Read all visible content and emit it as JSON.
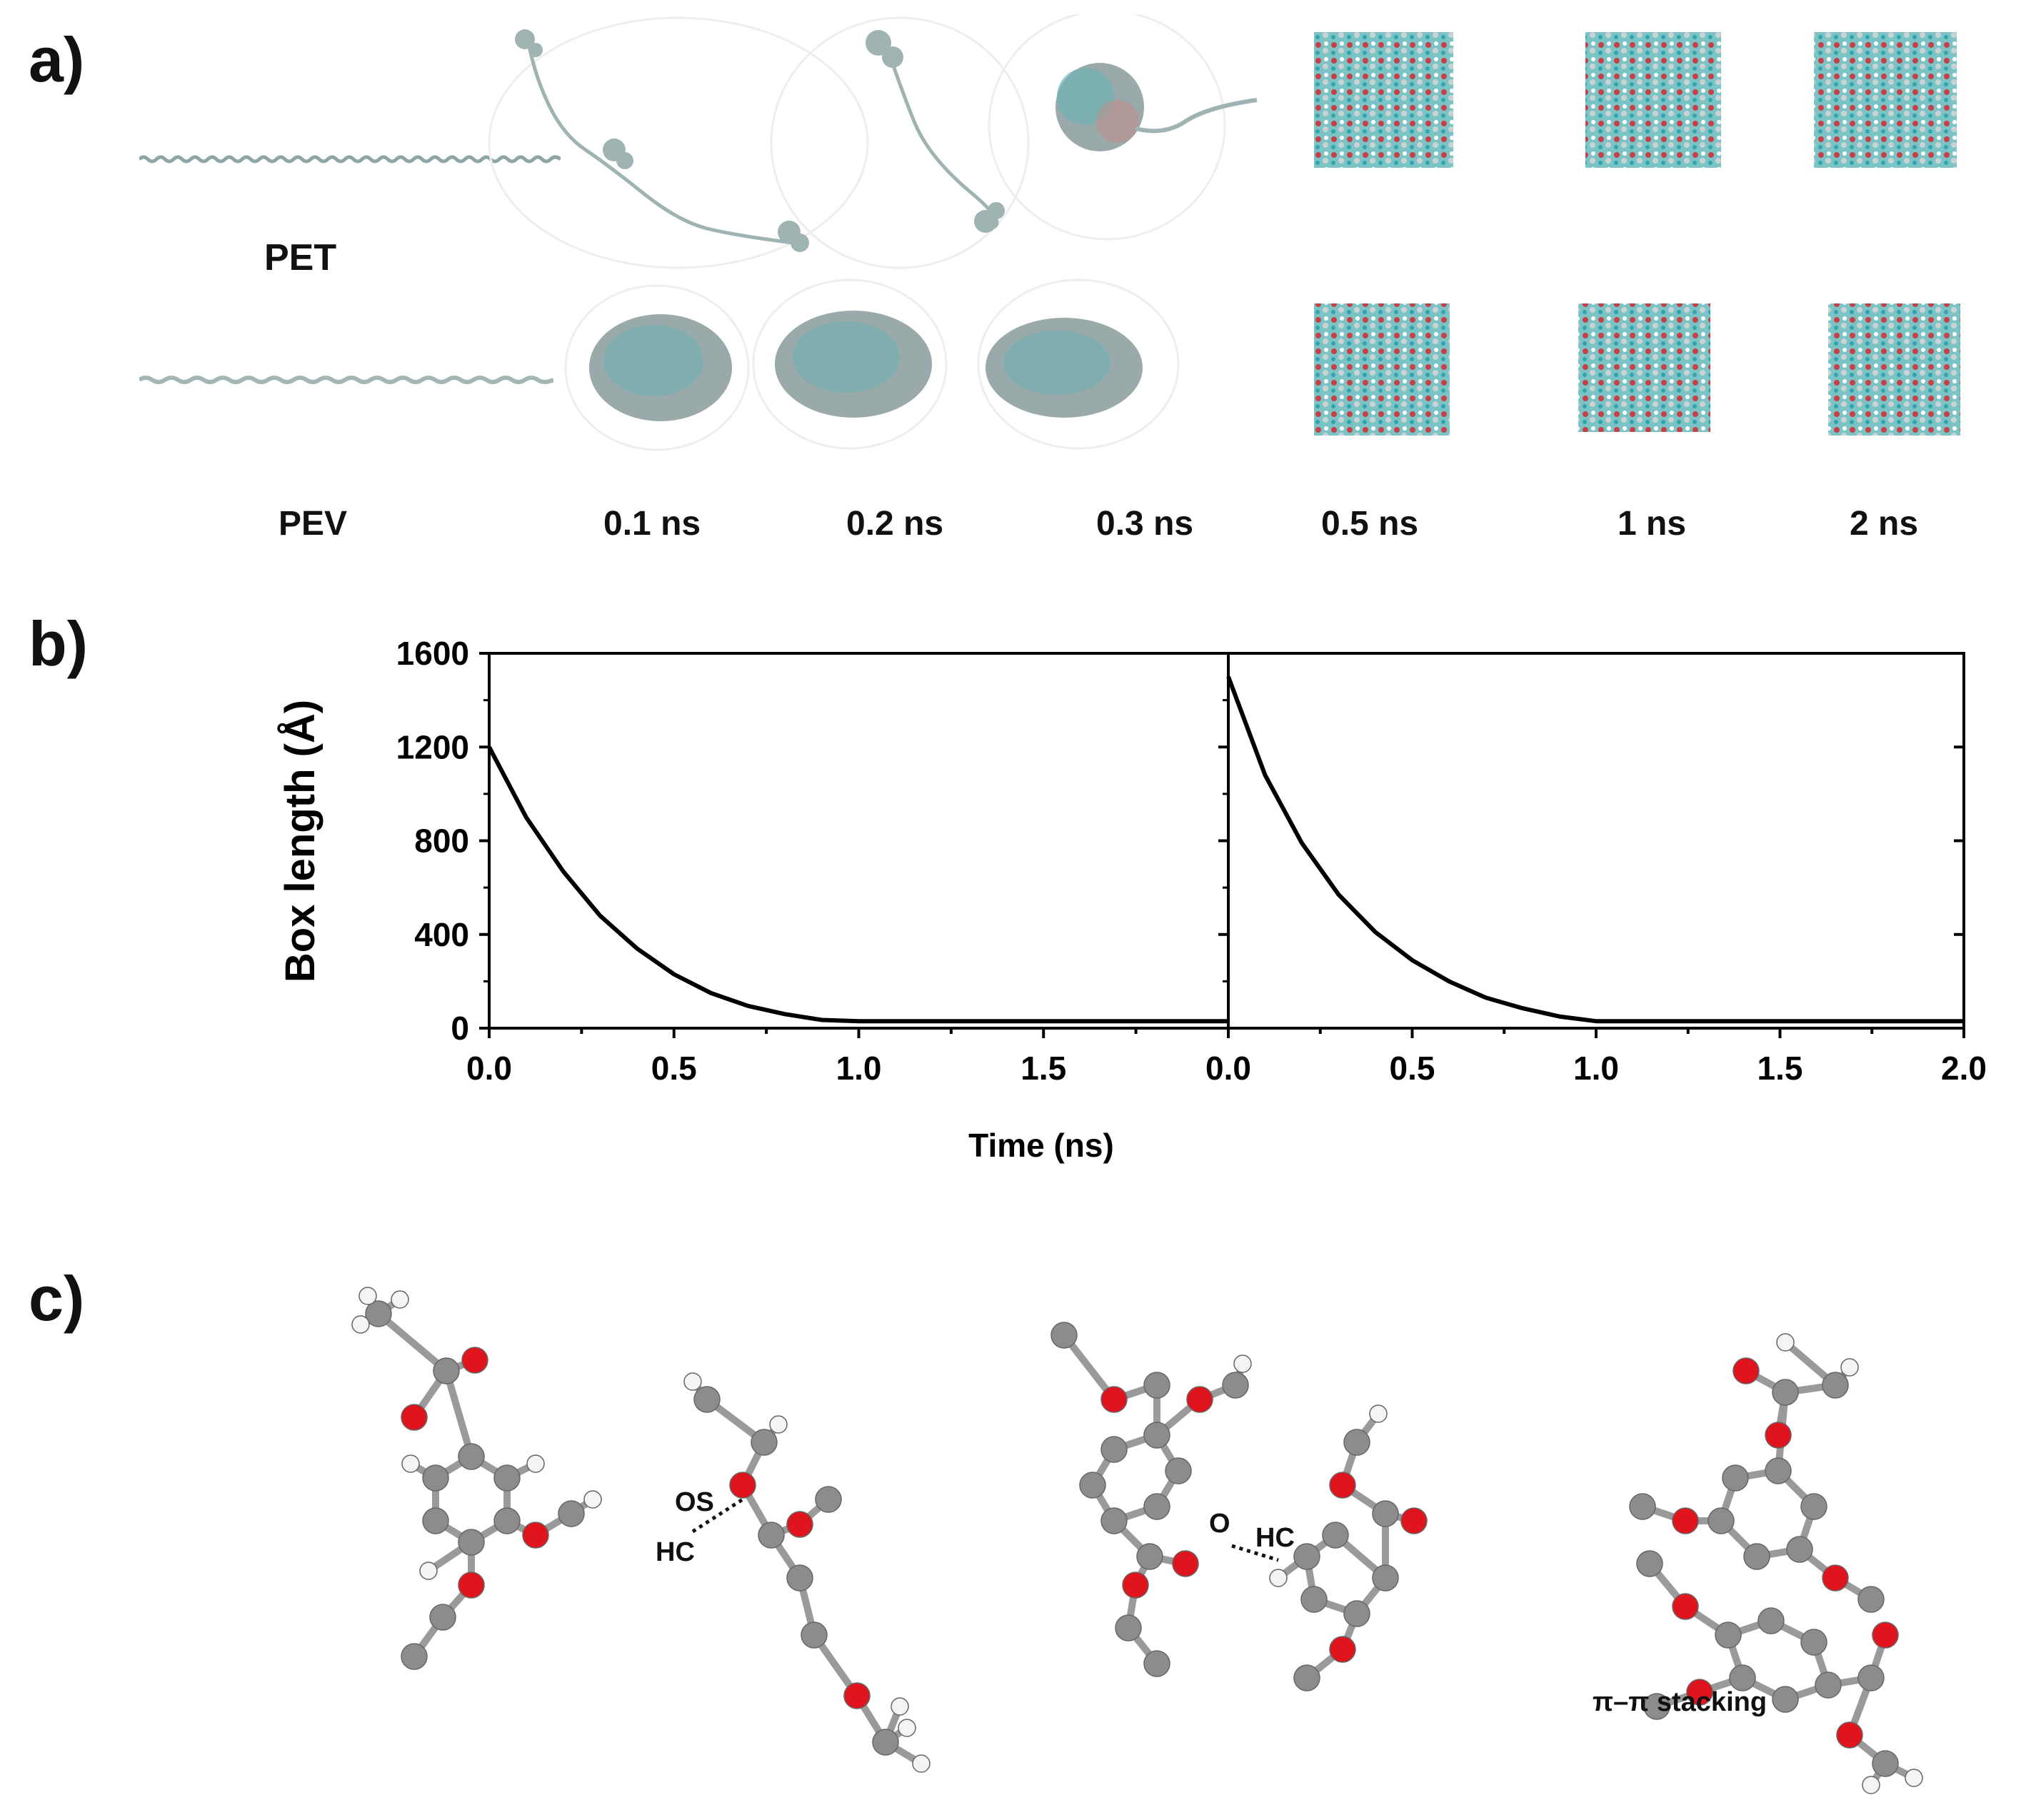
{
  "panels": {
    "a": "a)",
    "b": "b)",
    "c": "c)"
  },
  "panel_a": {
    "row_labels": [
      "PET",
      "PEV"
    ],
    "time_labels": [
      "0.1 ns",
      "0.2 ns",
      "0.3 ns",
      "0.5 ns",
      "1 ns",
      "2 ns"
    ]
  },
  "chart_data": {
    "type": "line",
    "ylabel": "Box length (Å)",
    "xlabel": "Time (ns)",
    "ylim": [
      0,
      1600
    ],
    "yticks": [
      0,
      400,
      800,
      1200,
      1600
    ],
    "subplots": [
      {
        "xlim": [
          0,
          2.0
        ],
        "xticks": [
          "0.0",
          "0.5",
          "1.0",
          "1.5"
        ],
        "series": [
          {
            "x": [
              0,
              0.1,
              0.2,
              0.3,
              0.4,
              0.5,
              0.6,
              0.7,
              0.8,
              0.9,
              1.0,
              1.5,
              2.0
            ],
            "y": [
              1200,
              900,
              670,
              480,
              340,
              230,
              150,
              95,
              60,
              35,
              30,
              30,
              30
            ]
          }
        ]
      },
      {
        "xlim": [
          0,
          2.0
        ],
        "xticks": [
          "0.0",
          "0.5",
          "1.0",
          "1.5",
          "2.0"
        ],
        "series": [
          {
            "x": [
              0,
              0.1,
              0.2,
              0.3,
              0.4,
              0.5,
              0.6,
              0.7,
              0.8,
              0.9,
              1.0,
              1.5,
              2.0
            ],
            "y": [
              1500,
              1080,
              790,
              570,
              410,
              290,
              200,
              130,
              85,
              50,
              30,
              30,
              30
            ]
          }
        ]
      }
    ],
    "grid": false,
    "colors": {
      "line": "#000000",
      "axis": "#000000"
    }
  },
  "panel_c": {
    "labels": {
      "os": "OS",
      "hc1": "HC",
      "o": "O",
      "hc2": "HC",
      "stacking": "π–π stacking"
    }
  },
  "colors": {
    "carbon": "#8c8c8c",
    "oxygen": "#e0141c",
    "hydrogen": "#f4f4f4",
    "chain": "#9fb3b3",
    "cyan": "#3cb8c0"
  }
}
